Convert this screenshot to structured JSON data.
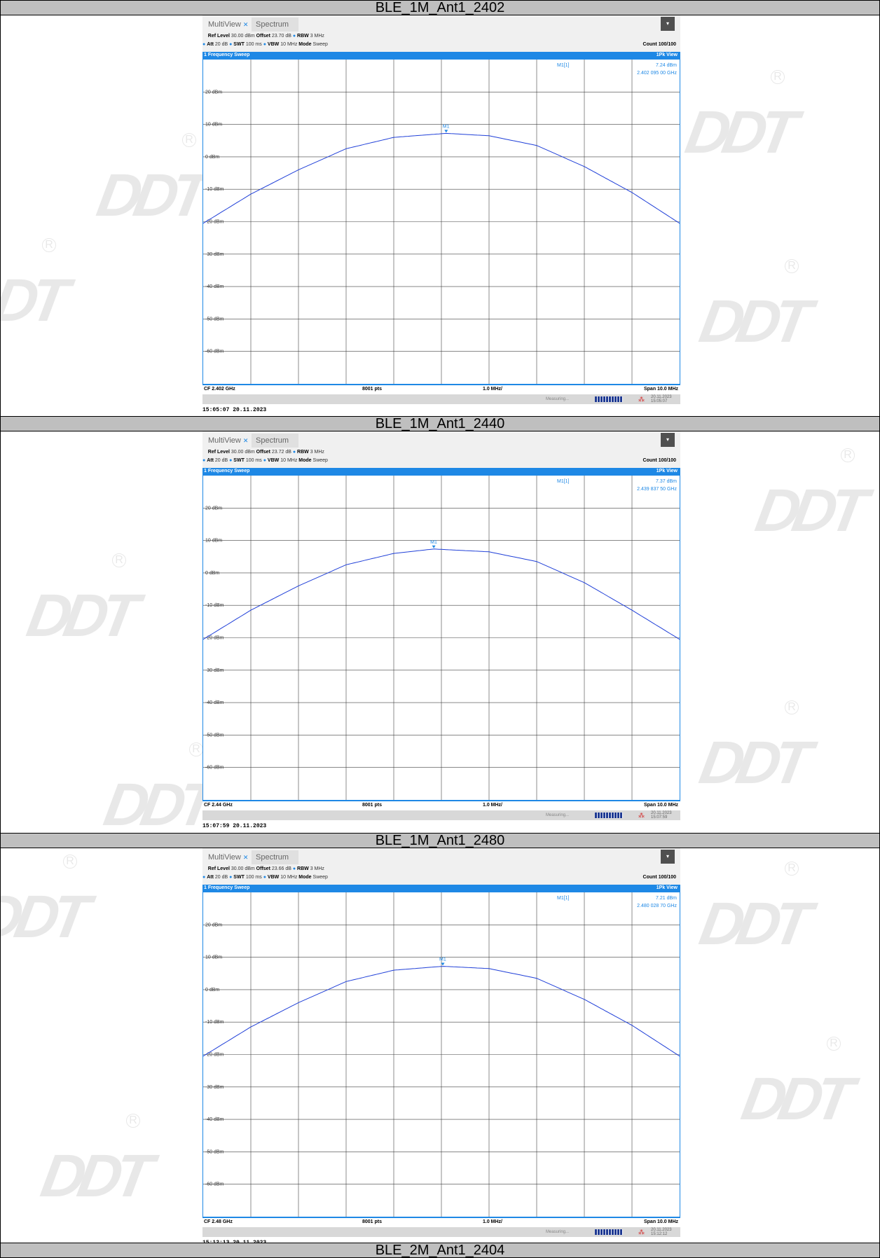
{
  "panels": [
    {
      "title": "BLE_1M_Ant1_2402",
      "tab1": "MultiView",
      "tab2": "Spectrum",
      "ref_level": "30.00 dBm",
      "offset": "23.70 dB",
      "rbw": "3 MHz",
      "att": "20 dB",
      "swt": "100 ms",
      "vbw": "10 MHz",
      "mode": "Sweep",
      "count": "Count 100/100",
      "sweep_label": "1 Frequency Sweep",
      "view": "1Pk View",
      "marker_name": "M1[1]",
      "marker_level": "7.24 dBm",
      "marker_freq": "2.402 095 00 GHz",
      "cf": "CF 2.402 GHz",
      "pts": "8001 pts",
      "div": "1.0 MHz/",
      "span": "Span 10.0 MHz",
      "status": "Measuring...",
      "status_date": "20.11.2023",
      "status_time": "15:05:07",
      "timestamp": "15:05:07  20.11.2023",
      "chart_data": {
        "type": "line",
        "ylim": [
          -70,
          30
        ],
        "xlim": [
          -5,
          5
        ],
        "y_ticks": [
          "20 dBm",
          "10 dBm",
          "0 dBm",
          "-10 dBm",
          "-20 dBm",
          "-30 dBm",
          "-40 dBm",
          "-50 dBm",
          "-60 dBm"
        ],
        "y_tick_values": [
          20,
          10,
          0,
          -10,
          -20,
          -30,
          -40,
          -50,
          -60
        ],
        "series": [
          {
            "x": [
              -5,
              -4,
              -3,
              -2,
              -1,
              0.1,
              1,
              2,
              3,
              4,
              5
            ],
            "values": [
              -20.5,
              -11.5,
              -4.0,
              2.5,
              6.0,
              7.24,
              6.5,
              3.5,
              -3.0,
              -11.0,
              -20.5
            ]
          }
        ],
        "marker": {
          "x": 0.1,
          "y": 7.24,
          "label": "M1"
        }
      }
    },
    {
      "title": "BLE_1M_Ant1_2440",
      "tab1": "MultiView",
      "tab2": "Spectrum",
      "ref_level": "30.00 dBm",
      "offset": "23.72 dB",
      "rbw": "3 MHz",
      "att": "20 dB",
      "swt": "100 ms",
      "vbw": "10 MHz",
      "mode": "Sweep",
      "count": "Count 100/100",
      "sweep_label": "1 Frequency Sweep",
      "view": "1Pk View",
      "marker_name": "M1[1]",
      "marker_level": "7.37 dBm",
      "marker_freq": "2.439 837 50 GHz",
      "cf": "CF 2.44 GHz",
      "pts": "8001 pts",
      "div": "1.0 MHz/",
      "span": "Span 10.0 MHz",
      "status": "Measuring...",
      "status_date": "20.11.2023",
      "status_time": "15:07:59",
      "timestamp": "15:07:59  20.11.2023",
      "chart_data": {
        "type": "line",
        "ylim": [
          -70,
          30
        ],
        "xlim": [
          -5,
          5
        ],
        "y_ticks": [
          "20 dBm",
          "10 dBm",
          "0 dBm",
          "-10 dBm",
          "-20 dBm",
          "-30 dBm",
          "-40 dBm",
          "-50 dBm",
          "-60 dBm"
        ],
        "y_tick_values": [
          20,
          10,
          0,
          -10,
          -20,
          -30,
          -40,
          -50,
          -60
        ],
        "series": [
          {
            "x": [
              -5,
              -4,
              -3,
              -2,
              -1,
              -0.16,
              1,
              2,
              3,
              4,
              5
            ],
            "values": [
              -20.5,
              -11.5,
              -4.0,
              2.5,
              6.0,
              7.37,
              6.5,
              3.5,
              -3.0,
              -11.5,
              -20.5
            ]
          }
        ],
        "marker": {
          "x": -0.16,
          "y": 7.37,
          "label": "M1"
        }
      }
    },
    {
      "title": "BLE_1M_Ant1_2480",
      "tab1": "MultiView",
      "tab2": "Spectrum",
      "ref_level": "30.00 dBm",
      "offset": "23.66 dB",
      "rbw": "3 MHz",
      "att": "20 dB",
      "swt": "100 ms",
      "vbw": "10 MHz",
      "mode": "Sweep",
      "count": "Count 100/100",
      "sweep_label": "1 Frequency Sweep",
      "view": "1Pk View",
      "marker_name": "M1[1]",
      "marker_level": "7.21 dBm",
      "marker_freq": "2.480 028 70 GHz",
      "cf": "CF 2.48 GHz",
      "pts": "8001 pts",
      "div": "1.0 MHz/",
      "span": "Span 10.0 MHz",
      "status": "Measuring...",
      "status_date": "20.11.2023",
      "status_time": "15:12:12",
      "timestamp": "15:12:13  20.11.2023",
      "chart_data": {
        "type": "line",
        "ylim": [
          -70,
          30
        ],
        "xlim": [
          -5,
          5
        ],
        "y_ticks": [
          "20 dBm",
          "10 dBm",
          "0 dBm",
          "-10 dBm",
          "-20 dBm",
          "-30 dBm",
          "-40 dBm",
          "-50 dBm",
          "-60 dBm"
        ],
        "y_tick_values": [
          20,
          10,
          0,
          -10,
          -20,
          -30,
          -40,
          -50,
          -60
        ],
        "series": [
          {
            "x": [
              -5,
              -4,
              -3,
              -2,
              -1,
              0.03,
              1,
              2,
              3,
              4,
              5
            ],
            "values": [
              -20.5,
              -11.5,
              -4.0,
              2.5,
              6.0,
              7.21,
              6.5,
              3.5,
              -3.0,
              -11.0,
              -20.5
            ]
          }
        ],
        "marker": {
          "x": 0.03,
          "y": 7.21,
          "label": "M1"
        }
      }
    }
  ],
  "footer_title": "BLE_2M_Ant1_2404"
}
